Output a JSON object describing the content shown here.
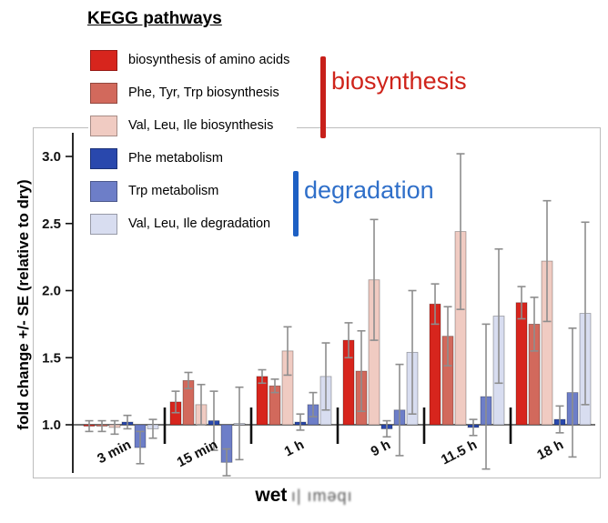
{
  "figure": {
    "title": "KEGG pathways",
    "ylabel": "fold change +/- SE (relative to dry)",
    "xlabel": "wet",
    "xlabel_garbled": "ı| ıməqı"
  },
  "legend_groups": [
    {
      "label": "biosynthesis",
      "text_color": "#cf241b",
      "bar_color": "#c8201a"
    },
    {
      "label": "degradation",
      "text_color": "#2f6fc9",
      "bar_color": "#1d60c4"
    }
  ],
  "chart_data": {
    "type": "bar",
    "title": "KEGG pathways",
    "xlabel": "wet",
    "ylabel": "fold change +/- SE (relative to dry)",
    "categories": [
      "3 min",
      "15 min",
      "1 h",
      "9 h",
      "11.5 h",
      "18 h"
    ],
    "baseline": 1.0,
    "ylim": [
      0.62,
      3.2
    ],
    "yticks": [
      "1.0",
      "1.5",
      "2.0",
      "2.5",
      "3.0"
    ],
    "grid": false,
    "legend_position": "top-left",
    "error_bar_color": "#8d8d8d",
    "series": [
      {
        "name": "biosynthesis of amino acids",
        "group": "biosynthesis",
        "color": "#d7251d",
        "values": [
          0.99,
          1.17,
          1.36,
          1.63,
          1.9,
          1.91
        ],
        "errors": [
          0.04,
          0.08,
          0.05,
          0.13,
          0.15,
          0.12
        ]
      },
      {
        "name": "Phe, Tyr, Trp biosynthesis",
        "group": "biosynthesis",
        "color": "#d2695c",
        "values": [
          0.99,
          1.33,
          1.29,
          1.4,
          1.66,
          1.75
        ],
        "errors": [
          0.04,
          0.06,
          0.05,
          0.3,
          0.22,
          0.2
        ]
      },
      {
        "name": "Val, Leu, Ile biosynthesis",
        "group": "biosynthesis",
        "color": "#f0cbc2",
        "values": [
          0.98,
          1.15,
          1.55,
          2.08,
          2.44,
          2.22
        ],
        "errors": [
          0.05,
          0.15,
          0.18,
          0.45,
          0.58,
          0.45
        ]
      },
      {
        "name": "Phe metabolism",
        "group": "degradation",
        "color": "#2948ad",
        "values": [
          1.02,
          1.03,
          1.02,
          0.97,
          0.98,
          1.04
        ],
        "errors": [
          0.05,
          0.22,
          0.06,
          0.06,
          0.06,
          0.1
        ]
      },
      {
        "name": "Trp metabolism",
        "group": "degradation",
        "color": "#6d7ec8",
        "values": [
          0.83,
          0.72,
          1.15,
          1.11,
          1.21,
          1.24
        ],
        "errors": [
          0.12,
          0.1,
          0.09,
          0.34,
          0.54,
          0.48
        ]
      },
      {
        "name": "Val, Leu, Ile degradation",
        "group": "degradation",
        "color": "#d8ddf0",
        "values": [
          0.97,
          1.01,
          1.36,
          1.54,
          1.81,
          1.83
        ],
        "errors": [
          0.07,
          0.27,
          0.25,
          0.46,
          0.5,
          0.68
        ]
      }
    ]
  }
}
